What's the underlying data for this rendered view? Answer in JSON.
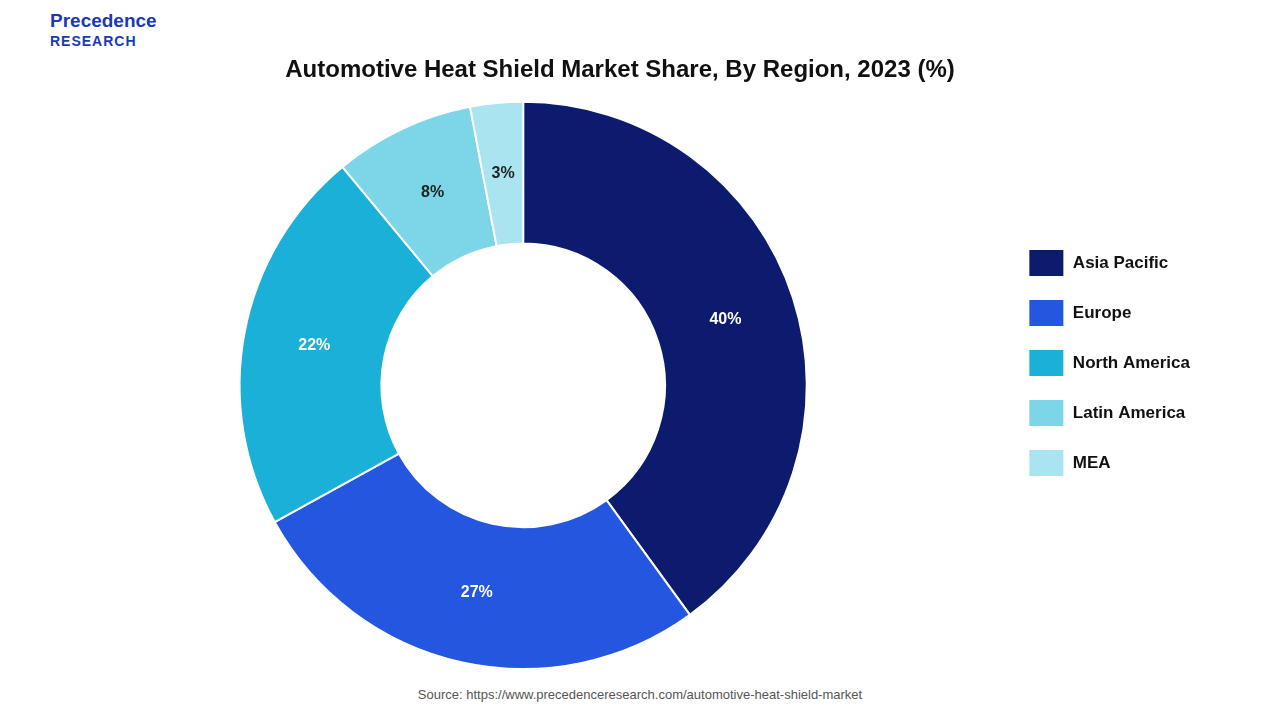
{
  "chart_data": {
    "type": "doughnut",
    "title": "Automotive Heat Shield Market Share, By Region, 2023 (%)",
    "categories": [
      "Asia Pacific",
      "Europe",
      "North America",
      "Latin America",
      "MEA"
    ],
    "values": [
      40,
      27,
      22,
      8,
      3
    ],
    "value_labels": [
      "40%",
      "27%",
      "22%",
      "8%",
      "3%"
    ],
    "colors": [
      "#0d1b6e",
      "#2456e0",
      "#1ab0d8",
      "#7dd6e8",
      "#aae4f0"
    ],
    "data_labels": true,
    "legend": "right",
    "annotations": [
      "Precedence",
      "RESEARCH",
      "Source: https://www.precedenceresearch.com/automotive-heat-shield-market"
    ]
  }
}
